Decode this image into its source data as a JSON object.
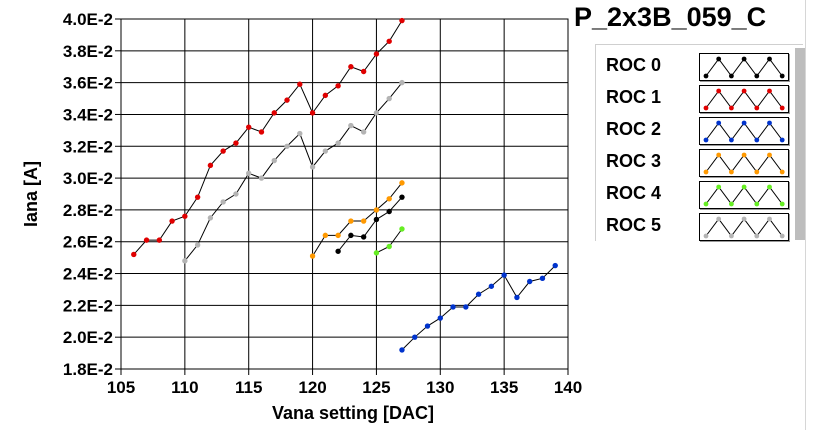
{
  "chart_data": {
    "type": "scatter",
    "title": "P_2x3B_059_C",
    "xlabel": "Vana setting [DAC]",
    "ylabel": "Iana [A]",
    "xlim": [
      105,
      140
    ],
    "ylim": [
      0.018,
      0.04
    ],
    "xticks": [
      105,
      110,
      115,
      120,
      125,
      130,
      135,
      140
    ],
    "xtick_labels": [
      "105",
      "110",
      "115",
      "120",
      "125",
      "130",
      "135",
      "140"
    ],
    "yticks": [
      0.018,
      0.02,
      0.022,
      0.024,
      0.026,
      0.028,
      0.03,
      0.032,
      0.034,
      0.036,
      0.038,
      0.04
    ],
    "ytick_labels": [
      "1.8E-2",
      "2.0E-2",
      "2.2E-2",
      "2.4E-2",
      "2.6E-2",
      "2.8E-2",
      "3.0E-2",
      "3.2E-2",
      "3.4E-2",
      "3.6E-2",
      "3.8E-2",
      "4.0E-2"
    ],
    "grid": true,
    "legend_placement": "right",
    "series": [
      {
        "name": "ROC 0",
        "color": "#000000",
        "x": [
          122,
          123,
          124,
          125,
          126,
          127
        ],
        "y": [
          0.0254,
          0.0264,
          0.0263,
          0.0274,
          0.0279,
          0.0288
        ]
      },
      {
        "name": "ROC 1",
        "color": "#e00000",
        "x": [
          106,
          107,
          108,
          109,
          110,
          111,
          112,
          113,
          114,
          115,
          116,
          117,
          118,
          119,
          120,
          121,
          122,
          123,
          124,
          125,
          126,
          127
        ],
        "y": [
          0.0252,
          0.0261,
          0.0261,
          0.0273,
          0.0276,
          0.0288,
          0.0308,
          0.0317,
          0.0322,
          0.0332,
          0.0329,
          0.0341,
          0.0349,
          0.0359,
          0.0341,
          0.0352,
          0.0358,
          0.037,
          0.0367,
          0.0378,
          0.0386,
          0.0399
        ]
      },
      {
        "name": "ROC 2",
        "color": "#0033cc",
        "x": [
          127,
          128,
          129,
          130,
          131,
          132,
          133,
          134,
          135,
          136,
          137,
          138,
          139
        ],
        "y": [
          0.0192,
          0.02,
          0.0207,
          0.0212,
          0.0219,
          0.0219,
          0.0227,
          0.0232,
          0.0239,
          0.0225,
          0.0235,
          0.0237,
          0.0245
        ]
      },
      {
        "name": "ROC 3",
        "color": "#ff9900",
        "x": [
          120,
          121,
          122,
          123,
          124,
          125,
          126,
          127
        ],
        "y": [
          0.0251,
          0.0264,
          0.0264,
          0.0273,
          0.0273,
          0.028,
          0.0287,
          0.0297
        ]
      },
      {
        "name": "ROC 4",
        "color": "#66ee22",
        "x": [
          125,
          126,
          127
        ],
        "y": [
          0.0253,
          0.0257,
          0.0268
        ]
      },
      {
        "name": "ROC 5",
        "color": "#b4b4b4",
        "x": [
          110,
          111,
          112,
          113,
          114,
          115,
          116,
          117,
          118,
          119,
          120,
          121,
          122,
          123,
          124,
          125,
          126,
          127
        ],
        "y": [
          0.0248,
          0.0258,
          0.0275,
          0.0285,
          0.029,
          0.0303,
          0.03,
          0.0311,
          0.032,
          0.0328,
          0.0307,
          0.0317,
          0.0322,
          0.0333,
          0.0329,
          0.0341,
          0.035,
          0.036
        ]
      }
    ]
  },
  "legend": {
    "items": [
      {
        "label": "ROC 0",
        "color": "#000000"
      },
      {
        "label": "ROC 1",
        "color": "#e00000"
      },
      {
        "label": "ROC 2",
        "color": "#0033cc"
      },
      {
        "label": "ROC 3",
        "color": "#ff9900"
      },
      {
        "label": "ROC 4",
        "color": "#66ee22"
      },
      {
        "label": "ROC 5",
        "color": "#b4b4b4"
      }
    ]
  }
}
